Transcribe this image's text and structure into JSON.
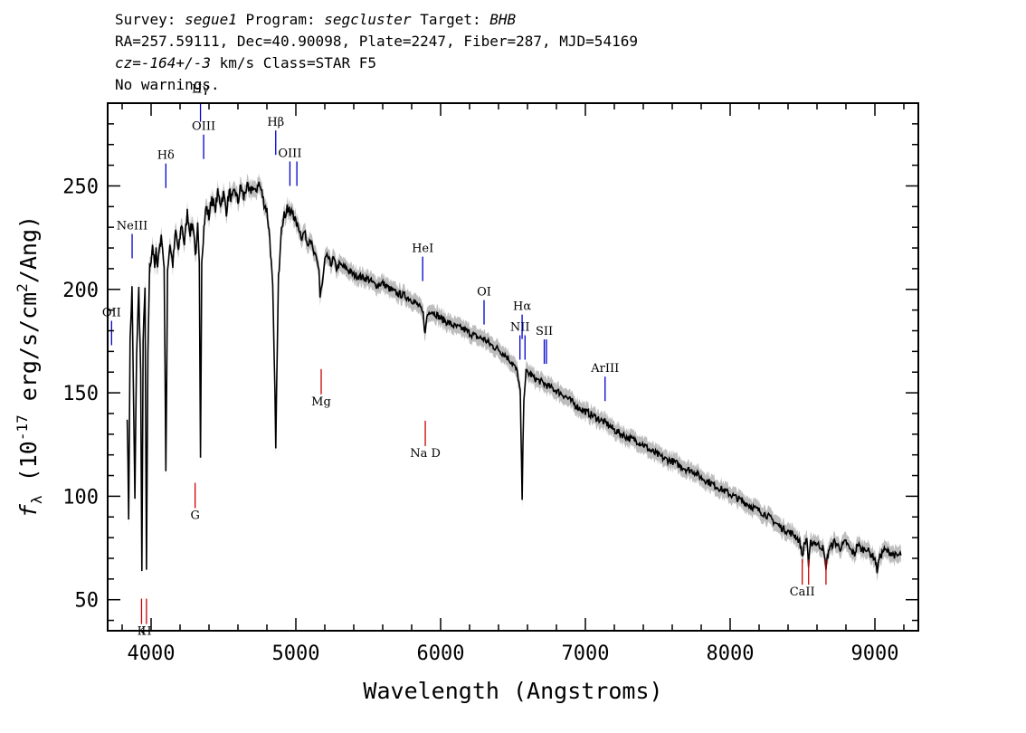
{
  "header": {
    "survey_label": "Survey:",
    "survey": "segue1",
    "program_label": "Program:",
    "program": "segcluster",
    "target_label": "Target:",
    "target": "BHB",
    "coords": "RA=257.59111, Dec=40.90098, Plate=2247, Fiber=287, MJD=54169",
    "cz": "cz=-164+/-3",
    "cz_unit": "km/s",
    "class": "Class=STAR F5",
    "warnings": "No warnings."
  },
  "chart_data": {
    "type": "line",
    "xlabel": "Wavelength (Angstroms)",
    "ylabel": "f_λ (10^-17 erg/s/cm^2/Ang)",
    "xlim": [
      3700,
      9300
    ],
    "ylim": [
      35,
      290
    ],
    "xticks": [
      4000,
      5000,
      6000,
      7000,
      8000,
      9000
    ],
    "yticks": [
      50,
      100,
      150,
      200,
      250
    ],
    "grid": false,
    "colors": {
      "spectrum": "#000000",
      "error_band": "#bdbdbd",
      "emission": "#0000cc",
      "absorption": "#cc0000"
    },
    "series": [
      {
        "values": [
          [
            3835,
            140
          ],
          [
            3845,
            90
          ],
          [
            3855,
            175
          ],
          [
            3868,
            200
          ],
          [
            3878,
            150
          ],
          [
            3888,
            98
          ],
          [
            3900,
            170
          ],
          [
            3915,
            200
          ],
          [
            3928,
            160
          ],
          [
            3936,
            62
          ],
          [
            3945,
            175
          ],
          [
            3958,
            200
          ],
          [
            3968,
            62
          ],
          [
            3978,
            170
          ],
          [
            3990,
            210
          ],
          [
            4000,
            215
          ],
          [
            4010,
            222
          ],
          [
            4025,
            210
          ],
          [
            4035,
            218
          ],
          [
            4045,
            212
          ],
          [
            4060,
            222
          ],
          [
            4075,
            225
          ],
          [
            4090,
            210
          ],
          [
            4102,
            112
          ],
          [
            4114,
            210
          ],
          [
            4130,
            222
          ],
          [
            4150,
            212
          ],
          [
            4170,
            228
          ],
          [
            4190,
            218
          ],
          [
            4210,
            232
          ],
          [
            4230,
            222
          ],
          [
            4250,
            237
          ],
          [
            4270,
            228
          ],
          [
            4290,
            232
          ],
          [
            4310,
            215
          ],
          [
            4322,
            230
          ],
          [
            4333,
            210
          ],
          [
            4341,
            120
          ],
          [
            4350,
            215
          ],
          [
            4365,
            230
          ],
          [
            4380,
            240
          ],
          [
            4400,
            235
          ],
          [
            4420,
            245
          ],
          [
            4440,
            238
          ],
          [
            4460,
            246
          ],
          [
            4480,
            242
          ],
          [
            4500,
            246
          ],
          [
            4520,
            238
          ],
          [
            4540,
            247
          ],
          [
            4560,
            243
          ],
          [
            4580,
            248
          ],
          [
            4600,
            242
          ],
          [
            4620,
            250
          ],
          [
            4640,
            244
          ],
          [
            4660,
            250
          ],
          [
            4680,
            246
          ],
          [
            4700,
            250
          ],
          [
            4720,
            246
          ],
          [
            4740,
            252
          ],
          [
            4760,
            248
          ],
          [
            4780,
            242
          ],
          [
            4800,
            238
          ],
          [
            4820,
            225
          ],
          [
            4840,
            200
          ],
          [
            4855,
            150
          ],
          [
            4861,
            126
          ],
          [
            4867,
            150
          ],
          [
            4880,
            205
          ],
          [
            4900,
            232
          ],
          [
            4920,
            235
          ],
          [
            4940,
            240
          ],
          [
            4960,
            236
          ],
          [
            4980,
            238
          ],
          [
            5000,
            232
          ],
          [
            5020,
            230
          ],
          [
            5040,
            225
          ],
          [
            5060,
            228
          ],
          [
            5080,
            222
          ],
          [
            5100,
            225
          ],
          [
            5120,
            218
          ],
          [
            5140,
            215
          ],
          [
            5160,
            210
          ],
          [
            5167,
            196
          ],
          [
            5173,
            200
          ],
          [
            5183,
            202
          ],
          [
            5200,
            214
          ],
          [
            5220,
            216
          ],
          [
            5240,
            212
          ],
          [
            5260,
            215
          ],
          [
            5280,
            210
          ],
          [
            5300,
            212
          ],
          [
            5350,
            210
          ],
          [
            5400,
            207
          ],
          [
            5450,
            206
          ],
          [
            5500,
            205
          ],
          [
            5550,
            202
          ],
          [
            5600,
            203
          ],
          [
            5650,
            200
          ],
          [
            5700,
            198
          ],
          [
            5750,
            197
          ],
          [
            5800,
            195
          ],
          [
            5850,
            192
          ],
          [
            5880,
            188
          ],
          [
            5893,
            178
          ],
          [
            5905,
            187
          ],
          [
            5930,
            190
          ],
          [
            5970,
            188
          ],
          [
            6000,
            186
          ],
          [
            6050,
            184
          ],
          [
            6100,
            182
          ],
          [
            6150,
            181
          ],
          [
            6200,
            179
          ],
          [
            6250,
            177
          ],
          [
            6300,
            176
          ],
          [
            6350,
            173
          ],
          [
            6400,
            171
          ],
          [
            6450,
            168
          ],
          [
            6500,
            164
          ],
          [
            6530,
            160
          ],
          [
            6550,
            150
          ],
          [
            6563,
            99
          ],
          [
            6575,
            148
          ],
          [
            6590,
            160
          ],
          [
            6620,
            159
          ],
          [
            6650,
            157
          ],
          [
            6700,
            155
          ],
          [
            6750,
            153
          ],
          [
            6800,
            151
          ],
          [
            6850,
            149
          ],
          [
            6900,
            146
          ],
          [
            6950,
            143
          ],
          [
            7000,
            141
          ],
          [
            7050,
            139
          ],
          [
            7100,
            137
          ],
          [
            7150,
            135
          ],
          [
            7200,
            132
          ],
          [
            7250,
            130
          ],
          [
            7300,
            128
          ],
          [
            7350,
            127
          ],
          [
            7400,
            125
          ],
          [
            7450,
            122
          ],
          [
            7500,
            120
          ],
          [
            7550,
            118
          ],
          [
            7600,
            117
          ],
          [
            7650,
            115
          ],
          [
            7700,
            113
          ],
          [
            7750,
            112
          ],
          [
            7800,
            109
          ],
          [
            7850,
            107
          ],
          [
            7900,
            105
          ],
          [
            7950,
            103
          ],
          [
            8000,
            101
          ],
          [
            8050,
            99
          ],
          [
            8100,
            97
          ],
          [
            8150,
            95
          ],
          [
            8200,
            93
          ],
          [
            8250,
            91
          ],
          [
            8300,
            88
          ],
          [
            8350,
            85
          ],
          [
            8400,
            83
          ],
          [
            8450,
            81
          ],
          [
            8480,
            78
          ],
          [
            8500,
            71
          ],
          [
            8510,
            76
          ],
          [
            8530,
            80
          ],
          [
            8542,
            66
          ],
          [
            8555,
            77
          ],
          [
            8580,
            78
          ],
          [
            8620,
            76
          ],
          [
            8640,
            75
          ],
          [
            8662,
            66
          ],
          [
            8680,
            74
          ],
          [
            8720,
            78
          ],
          [
            8760,
            75
          ],
          [
            8800,
            78
          ],
          [
            8830,
            74
          ],
          [
            8860,
            72
          ],
          [
            8880,
            77
          ],
          [
            8910,
            74
          ],
          [
            8940,
            75
          ],
          [
            8970,
            72
          ],
          [
            9000,
            70
          ],
          [
            9015,
            64
          ],
          [
            9030,
            70
          ],
          [
            9060,
            74
          ],
          [
            9100,
            73
          ],
          [
            9150,
            71
          ],
          [
            9180,
            72
          ]
        ]
      }
    ],
    "lines": [
      {
        "label": "Hγ",
        "wavelength": 4341,
        "color": "blue",
        "y_label": 295
      },
      {
        "label": "OIII",
        "wavelength": 4363,
        "color": "blue",
        "y_label": 277
      },
      {
        "label": "Hδ",
        "wavelength": 4102,
        "color": "blue",
        "y_label": 263
      },
      {
        "label": "Hβ",
        "wavelength": 4861,
        "color": "blue",
        "y_label": 279
      },
      {
        "label": "OIII",
        "wavelength": 4959,
        "color": "blue",
        "y_label": 264
      },
      {
        "label": "OIII",
        "wavelength": 5007,
        "color": "blue",
        "y_label": 264
      },
      {
        "label": "NeIII",
        "wavelength": 3869,
        "color": "blue",
        "y_label": 229
      },
      {
        "label": "OII",
        "wavelength": 3727,
        "color": "blue",
        "y_label": 187
      },
      {
        "label": "HeI",
        "wavelength": 5876,
        "color": "blue",
        "y_label": 218
      },
      {
        "label": "OI",
        "wavelength": 6300,
        "color": "blue",
        "y_label": 197
      },
      {
        "label": "NII",
        "wavelength": 6548,
        "color": "blue",
        "y_label": 180
      },
      {
        "label": "Hα",
        "wavelength": 6563,
        "color": "blue",
        "y_label": 190
      },
      {
        "label": "NII",
        "wavelength": 6583,
        "color": "blue",
        "y_label": 180
      },
      {
        "label": "SII",
        "wavelength": 6716,
        "color": "blue",
        "y_label": 178
      },
      {
        "label": "SII",
        "wavelength": 6731,
        "color": "blue",
        "y_label": 178
      },
      {
        "label": "ArIII",
        "wavelength": 7136,
        "color": "blue",
        "y_label": 160
      },
      {
        "label": "G",
        "wavelength": 4304,
        "color": "red",
        "y_label": 89
      },
      {
        "label": "Mg",
        "wavelength": 5175,
        "color": "red",
        "y_label": 144
      },
      {
        "label": "Na D",
        "wavelength": 5894,
        "color": "red",
        "y_label": 119
      },
      {
        "label": "K",
        "wavelength": 3934,
        "color": "red",
        "y_label": 33
      },
      {
        "label": "H",
        "wavelength": 3968,
        "color": "red",
        "y_label": 33
      },
      {
        "label": "CaII",
        "wavelength": 8498,
        "color": "red",
        "y_label": 52
      },
      {
        "label": "CaII",
        "wavelength": 8542,
        "color": "red",
        "y_label": 52
      },
      {
        "label": "CaII",
        "wavelength": 8662,
        "color": "red",
        "y_label": 52
      }
    ]
  }
}
